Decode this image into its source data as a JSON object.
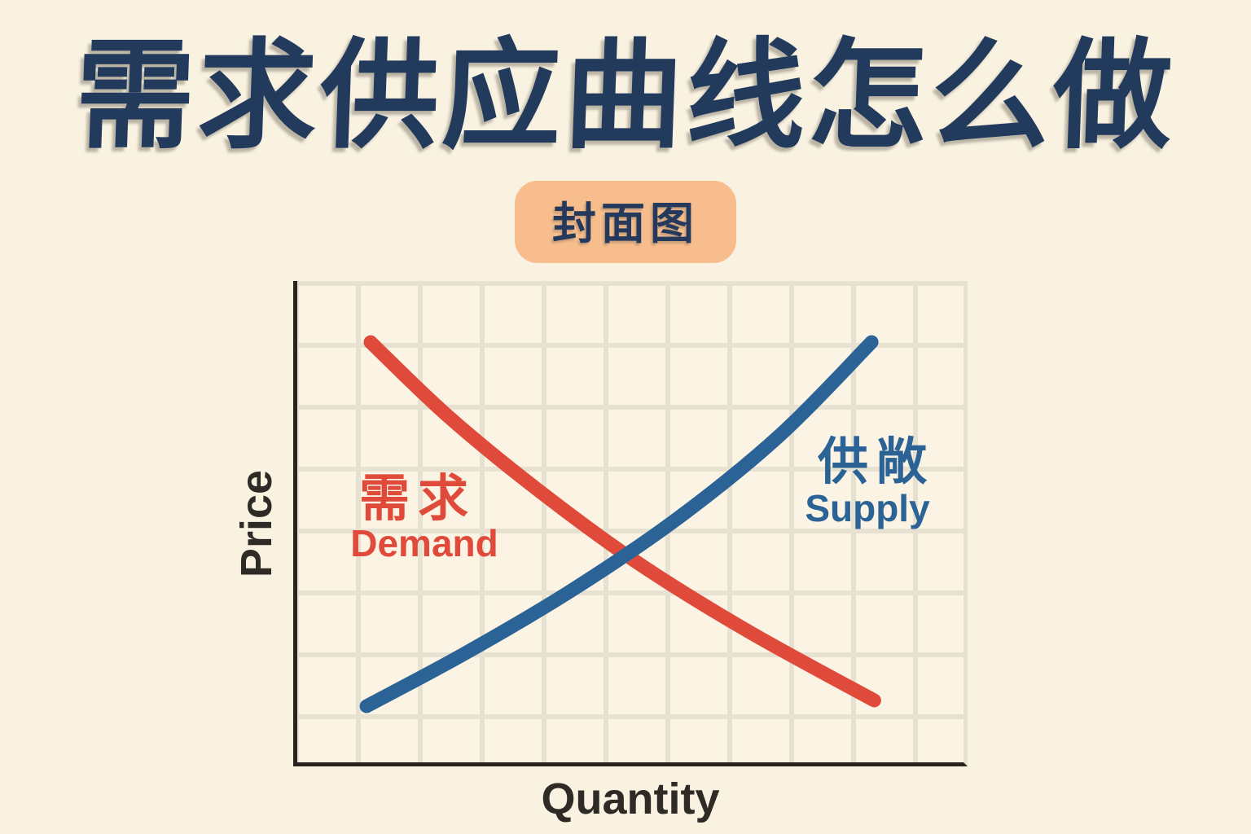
{
  "page": {
    "background_color": "#f9f2e1",
    "accent_navy": "#223a5c",
    "badge_peach": "#f7bd8c"
  },
  "title": "需求供应曲线怎么做",
  "badge": {
    "label": "封面图"
  },
  "chart_data": {
    "type": "line",
    "title": "",
    "xlabel": "Quantity",
    "ylabel": "Price",
    "grid": true,
    "legend_position": "none",
    "axis_color": "#29241f",
    "grid_color": "#e7e1d1",
    "x_range": "qualitative (no tick labels)",
    "y_range": "qualitative (no tick labels)",
    "coords_note": "points are percent of plot area, x rightward, y downward",
    "series": [
      {
        "name": "demand",
        "label_zh": "需求",
        "label_en": "Demand",
        "color": "#e04a3b",
        "stroke_width": 17,
        "points": [
          [
            11.0,
            12.6
          ],
          [
            22.5,
            27.7
          ],
          [
            35.7,
            42.6
          ],
          [
            50.6,
            57.6
          ],
          [
            67.6,
            72.1
          ],
          [
            86.6,
            86.4
          ]
        ]
      },
      {
        "name": "supply",
        "label_zh": "供敞",
        "label_en": "Supply",
        "color": "#2b6396",
        "stroke_width": 17,
        "points": [
          [
            10.4,
            87.6
          ],
          [
            25.2,
            76.7
          ],
          [
            41.1,
            63.8
          ],
          [
            57.2,
            48.8
          ],
          [
            72.5,
            31.7
          ],
          [
            86.2,
            12.6
          ]
        ]
      }
    ]
  }
}
